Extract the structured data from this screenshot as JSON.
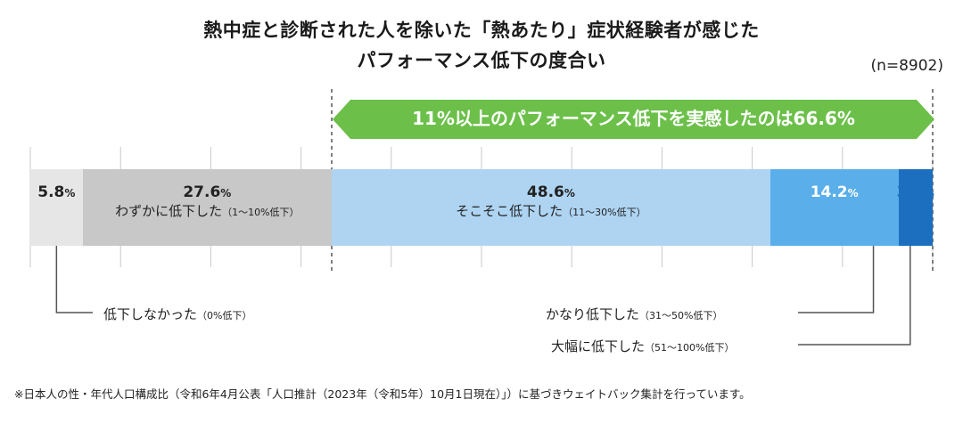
{
  "title_line1": "熱中症と診断された人を除いた「熱あたり」症状経験者が感じた",
  "title_line2": "パフォーマンス低下の度合い",
  "sample_size": "(n=8902)",
  "banner_text": "11%以上のパフォーマンス低下を実感したのは66.6%",
  "percent_symbol": "%",
  "footnote": "※日本人の性・年代人口構成比（令和6年4月公表「人口推計（2023年（令和5年）10月1日現在）」）に基づきウェイトバック集計を行っています。",
  "colors": {
    "banner_green": "#6cc04a",
    "seg_none": "#e6e6e6",
    "seg_slight": "#c8c8c8",
    "seg_moderate": "#aed4f2",
    "seg_considerable": "#5aaeea",
    "seg_large": "#1c6fbf",
    "pct_light_blue": "#1c6fbf"
  },
  "chart_data": {
    "type": "bar",
    "orientation": "horizontal-stacked-100",
    "categories": [
      {
        "value": 5.8,
        "label": "低下しなかった",
        "range": "（0%低下）",
        "color": "#e6e6e6"
      },
      {
        "value": 27.6,
        "label": "わずかに低下した",
        "range": "（1〜10%低下）",
        "color": "#c8c8c8"
      },
      {
        "value": 48.6,
        "label": "そこそこ低下した",
        "range": "（11〜30%低下）",
        "color": "#aed4f2"
      },
      {
        "value": 14.2,
        "label": "かなり低下した",
        "range": "（31〜50%低下）",
        "color": "#5aaeea"
      },
      {
        "value": 3.8,
        "label": "大幅に低下した",
        "range": "（51〜100%低下）",
        "color": "#1c6fbf"
      }
    ],
    "value_labels": [
      "5.8",
      "27.6",
      "48.6",
      "14.2",
      "3.8"
    ],
    "xlim": [
      0,
      100
    ],
    "grid": true
  }
}
